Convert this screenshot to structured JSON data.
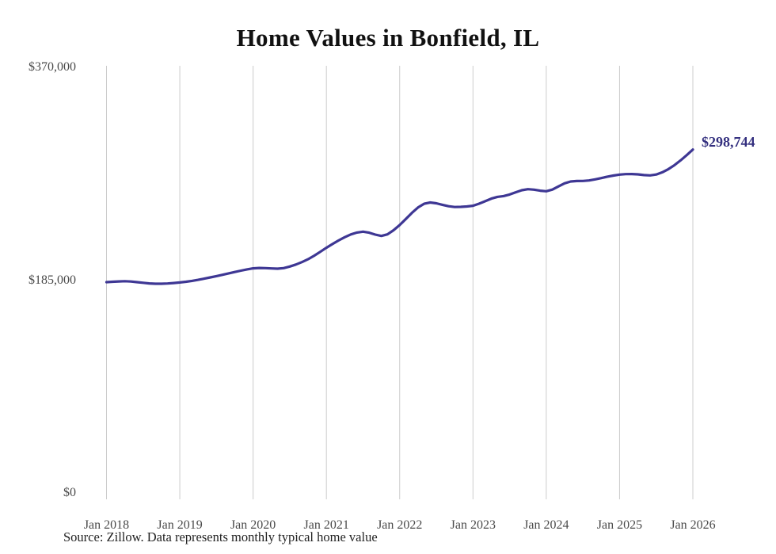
{
  "page": {
    "background": "#ffffff"
  },
  "chart_data": {
    "type": "line",
    "title": "Home Values in Bonfield, IL",
    "source_note": "Source: Zillow. Data represents monthly typical home value",
    "xlabel": "",
    "ylabel": "",
    "ylim": [
      0,
      370000
    ],
    "grid": "vertical-only",
    "legend": "none",
    "line_color": "#3e3794",
    "grid_color": "#cccccc",
    "tick_label_color": "#4a4a4a",
    "end_label": "$298,744",
    "end_value": 298744,
    "x_tick_labels": [
      "Jan 2018",
      "Jan 2019",
      "Jan 2020",
      "Jan 2021",
      "Jan 2022",
      "Jan 2023",
      "Jan 2024",
      "Jan 2025",
      "Jan 2026"
    ],
    "y_tick_labels": [
      "$370,000",
      "$185,000",
      "$0"
    ],
    "y_tick_values": [
      370000,
      185000,
      0
    ],
    "series": [
      {
        "name": "Typical home value (monthly)",
        "start_month": "2018-01",
        "end_month": "2026-01",
        "values": [
          183300,
          183600,
          183900,
          184100,
          183800,
          183300,
          182700,
          182200,
          181900,
          181900,
          182100,
          182500,
          183000,
          183600,
          184400,
          185300,
          186300,
          187400,
          188500,
          189700,
          190900,
          192100,
          193300,
          194400,
          195300,
          195600,
          195500,
          195200,
          195000,
          195500,
          196900,
          198600,
          200700,
          203200,
          206300,
          209700,
          213200,
          216500,
          219600,
          222400,
          224800,
          226500,
          227200,
          226300,
          224700,
          223500,
          224900,
          228500,
          233000,
          238300,
          243600,
          248300,
          251500,
          252600,
          251900,
          250600,
          249400,
          248700,
          248800,
          249200,
          249800,
          251600,
          253700,
          256000,
          257500,
          258200,
          259600,
          261500,
          263300,
          264200,
          263800,
          262900,
          262400,
          263900,
          266600,
          269300,
          270900,
          271300,
          271400,
          271800,
          272800,
          273900,
          275100,
          276100,
          276900,
          277300,
          277400,
          277100,
          276500,
          276200,
          277000,
          278900,
          281700,
          285200,
          289300,
          293900,
          298744
        ]
      }
    ]
  }
}
